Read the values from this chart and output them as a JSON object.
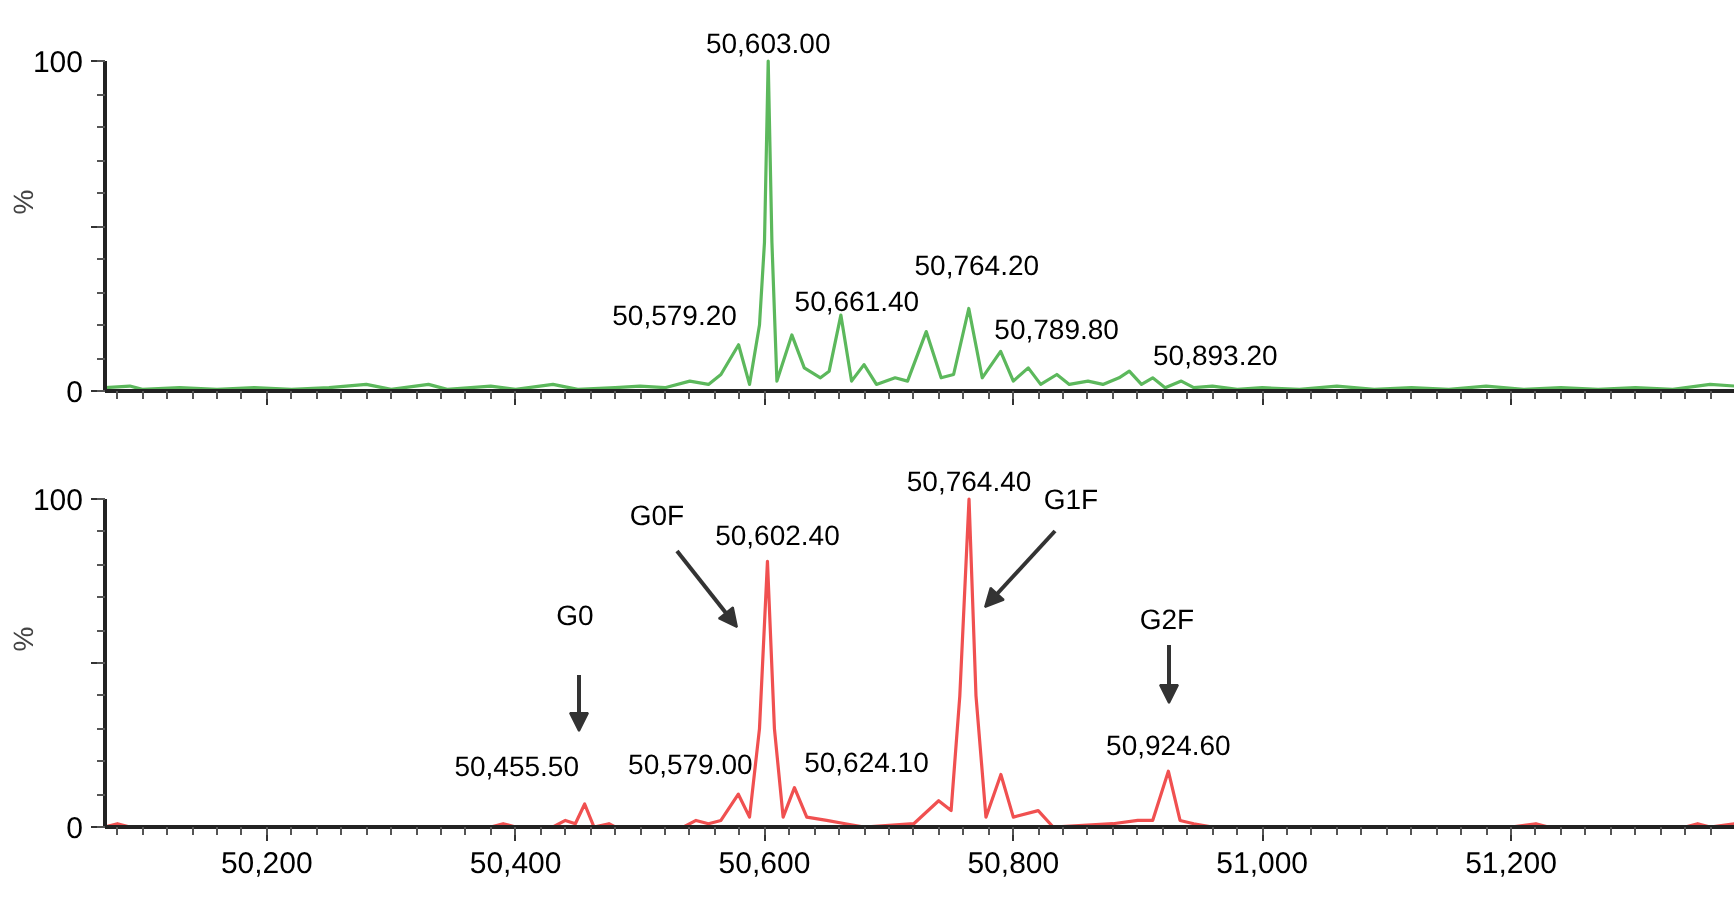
{
  "chart_data": [
    {
      "type": "line",
      "ylabel": "%",
      "xlim": [
        50070,
        51380
      ],
      "ylim": [
        0,
        100
      ],
      "xticks": [
        {
          "value": 50200,
          "label": null
        },
        {
          "value": 50400,
          "label": null
        },
        {
          "value": 50600,
          "label": null
        },
        {
          "value": 50800,
          "label": null
        },
        {
          "value": 51000,
          "label": null
        },
        {
          "value": 51200,
          "label": null
        }
      ],
      "yticks": [
        0,
        {
          "value": 50,
          "label": null
        },
        100
      ],
      "tick_labels": "y",
      "grid": false,
      "series": [
        {
          "color": "#5cb85c",
          "x": [
            50070,
            50090,
            50100,
            50130,
            50160,
            50190,
            50220,
            50250,
            50280,
            50300,
            50330,
            50345,
            50380,
            50400,
            50430,
            50450,
            50480,
            50500,
            50520,
            50540,
            50555,
            50565,
            50579.2,
            50588,
            50596,
            50600,
            50603,
            50606,
            50610,
            50622,
            50632,
            50645,
            50652,
            50661.4,
            50670,
            50680,
            50690,
            50705,
            50715,
            50730,
            50742,
            50752,
            50764.2,
            50775,
            50789.8,
            50800,
            50812,
            50822,
            50835,
            50845,
            50860,
            50872,
            50885,
            50893.2,
            50903,
            50912,
            50922,
            50935,
            50945,
            50960,
            50980,
            51000,
            51030,
            51060,
            51090,
            51120,
            51150,
            51180,
            51210,
            51240,
            51270,
            51300,
            51330,
            51360,
            51380
          ],
          "values": [
            1,
            1.5,
            0.5,
            1,
            0.5,
            1,
            0.5,
            1,
            2,
            0.5,
            2,
            0.5,
            1.5,
            0.5,
            2,
            0.5,
            1,
            1.5,
            1,
            3,
            2,
            5,
            14,
            2,
            20,
            45,
            100,
            45,
            3,
            17,
            7,
            4,
            6,
            23,
            3,
            8,
            2,
            4,
            3,
            18,
            4,
            5,
            25,
            4,
            12,
            3,
            7,
            2,
            5,
            2,
            3,
            2,
            4,
            6,
            2,
            4,
            1,
            3,
            1,
            1.5,
            0.5,
            1,
            0.5,
            1.5,
            0.5,
            1,
            0.5,
            1.5,
            0.5,
            1,
            0.5,
            1,
            0.5,
            2,
            1.5
          ]
        }
      ],
      "annotations": [
        {
          "text": "50,603.00",
          "x": 50603,
          "y": 100
        },
        {
          "text": "50,579.20",
          "x": 50579.2,
          "y": 14
        },
        {
          "text": "50,661.40",
          "x": 50661.4,
          "y": 23
        },
        {
          "text": "50,764.20",
          "x": 50764.2,
          "y": 25
        },
        {
          "text": "50,789.80",
          "x": 50789.8,
          "y": 12
        },
        {
          "text": "50,893.20",
          "x": 50893.2,
          "y": 6
        }
      ]
    },
    {
      "type": "line",
      "ylabel": "%",
      "xlim": [
        50070,
        51380
      ],
      "ylim": [
        0,
        100
      ],
      "xticks": [
        {
          "value": 50200,
          "label": "50,200"
        },
        {
          "value": 50400,
          "label": "50,400"
        },
        {
          "value": 50600,
          "label": "50,600"
        },
        {
          "value": 50800,
          "label": "50,800"
        },
        {
          "value": 51000,
          "label": "51,000"
        },
        {
          "value": 51200,
          "label": "51,200"
        }
      ],
      "yticks": [
        0,
        {
          "value": 50,
          "label": null
        },
        100
      ],
      "grid": false,
      "series": [
        {
          "color": "#f05050",
          "x": [
            50070,
            50080,
            50090,
            50380,
            50390,
            50400,
            50430,
            50440,
            50448,
            50455.5,
            50463,
            50475,
            50480,
            50535,
            50545,
            50555,
            50565,
            50579,
            50588,
            50596,
            50602.4,
            50608,
            50615,
            50624.1,
            50634,
            50650,
            50665,
            50680,
            50720,
            50740,
            50750,
            50757,
            50764.4,
            50770,
            50778,
            50790,
            50800,
            50820,
            50832,
            50880,
            50900,
            50912,
            50924.6,
            50934,
            50945,
            50960,
            51200,
            51220,
            51230,
            51340,
            51350,
            51360,
            51380
          ],
          "values": [
            0,
            1,
            0,
            0,
            1,
            0,
            0,
            2,
            1,
            7,
            0,
            1,
            0,
            0,
            2,
            1,
            2,
            10,
            3,
            30,
            81,
            30,
            3,
            12,
            3,
            2,
            1,
            0,
            1,
            8,
            5,
            40,
            100,
            40,
            3,
            16,
            3,
            5,
            0,
            1,
            2,
            2,
            17,
            2,
            1,
            0,
            0,
            1,
            0,
            0,
            1,
            0,
            1
          ]
        }
      ],
      "annotations": [
        {
          "text": "50,455.50",
          "x": 50455.5,
          "y": 7
        },
        {
          "text": "50,579.00",
          "x": 50579,
          "y": 10
        },
        {
          "text": "50,602.40",
          "x": 50602.4,
          "y": 81
        },
        {
          "text": "50,624.10",
          "x": 50624.1,
          "y": 12
        },
        {
          "text": "50,764.40",
          "x": 50764.4,
          "y": 100
        },
        {
          "text": "50,924.60",
          "x": 50924.6,
          "y": 17
        },
        "G0",
        "G0F",
        "G1F",
        "G2F"
      ]
    }
  ]
}
